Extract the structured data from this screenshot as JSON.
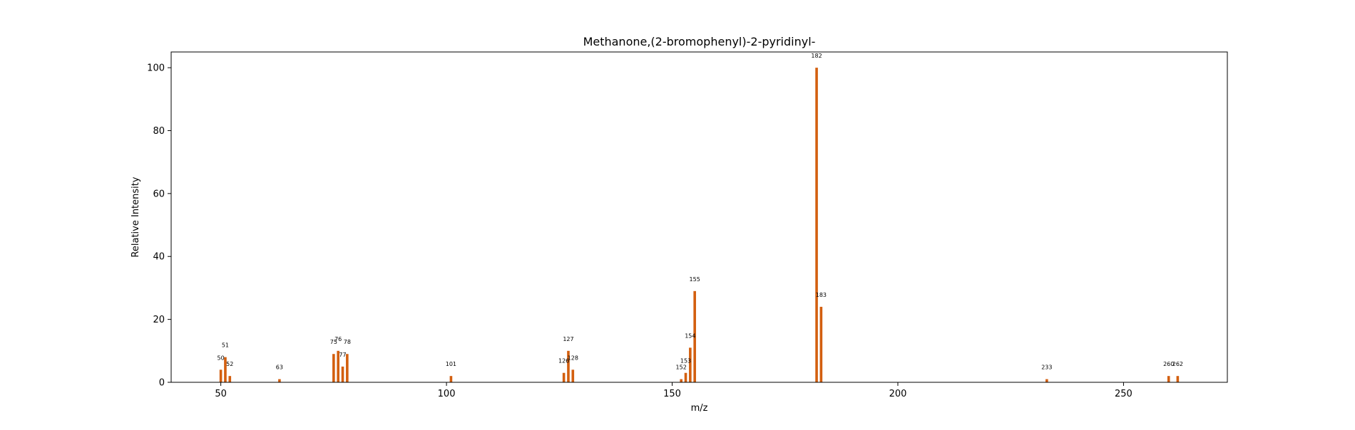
{
  "chart_data": {
    "type": "bar",
    "title": "Methanone,(2-bromophenyl)-2-pyridinyl-",
    "xlabel": "m/z",
    "ylabel": "Relative Intensity",
    "xlim": [
      39,
      273
    ],
    "ylim": [
      0,
      105
    ],
    "xticks": [
      50,
      100,
      150,
      200,
      250
    ],
    "yticks": [
      0,
      20,
      40,
      60,
      80,
      100
    ],
    "grid": false,
    "bar_color": "#d35f0f",
    "x": [
      50,
      51,
      52,
      63,
      75,
      76,
      77,
      78,
      101,
      126,
      127,
      128,
      152,
      153,
      154,
      155,
      182,
      183,
      233,
      260,
      262
    ],
    "values": [
      4,
      8,
      2,
      1,
      9,
      10,
      5,
      9,
      2,
      3,
      10,
      4,
      1,
      3,
      11,
      29,
      100,
      24,
      1,
      2,
      2
    ],
    "peak_labels": [
      "50",
      "51",
      "52",
      "63",
      "75",
      "76",
      "77",
      "78",
      "101",
      "126",
      "127",
      "128",
      "152",
      "153",
      "154",
      "155",
      "182",
      "183",
      "233",
      "260",
      "262"
    ]
  }
}
